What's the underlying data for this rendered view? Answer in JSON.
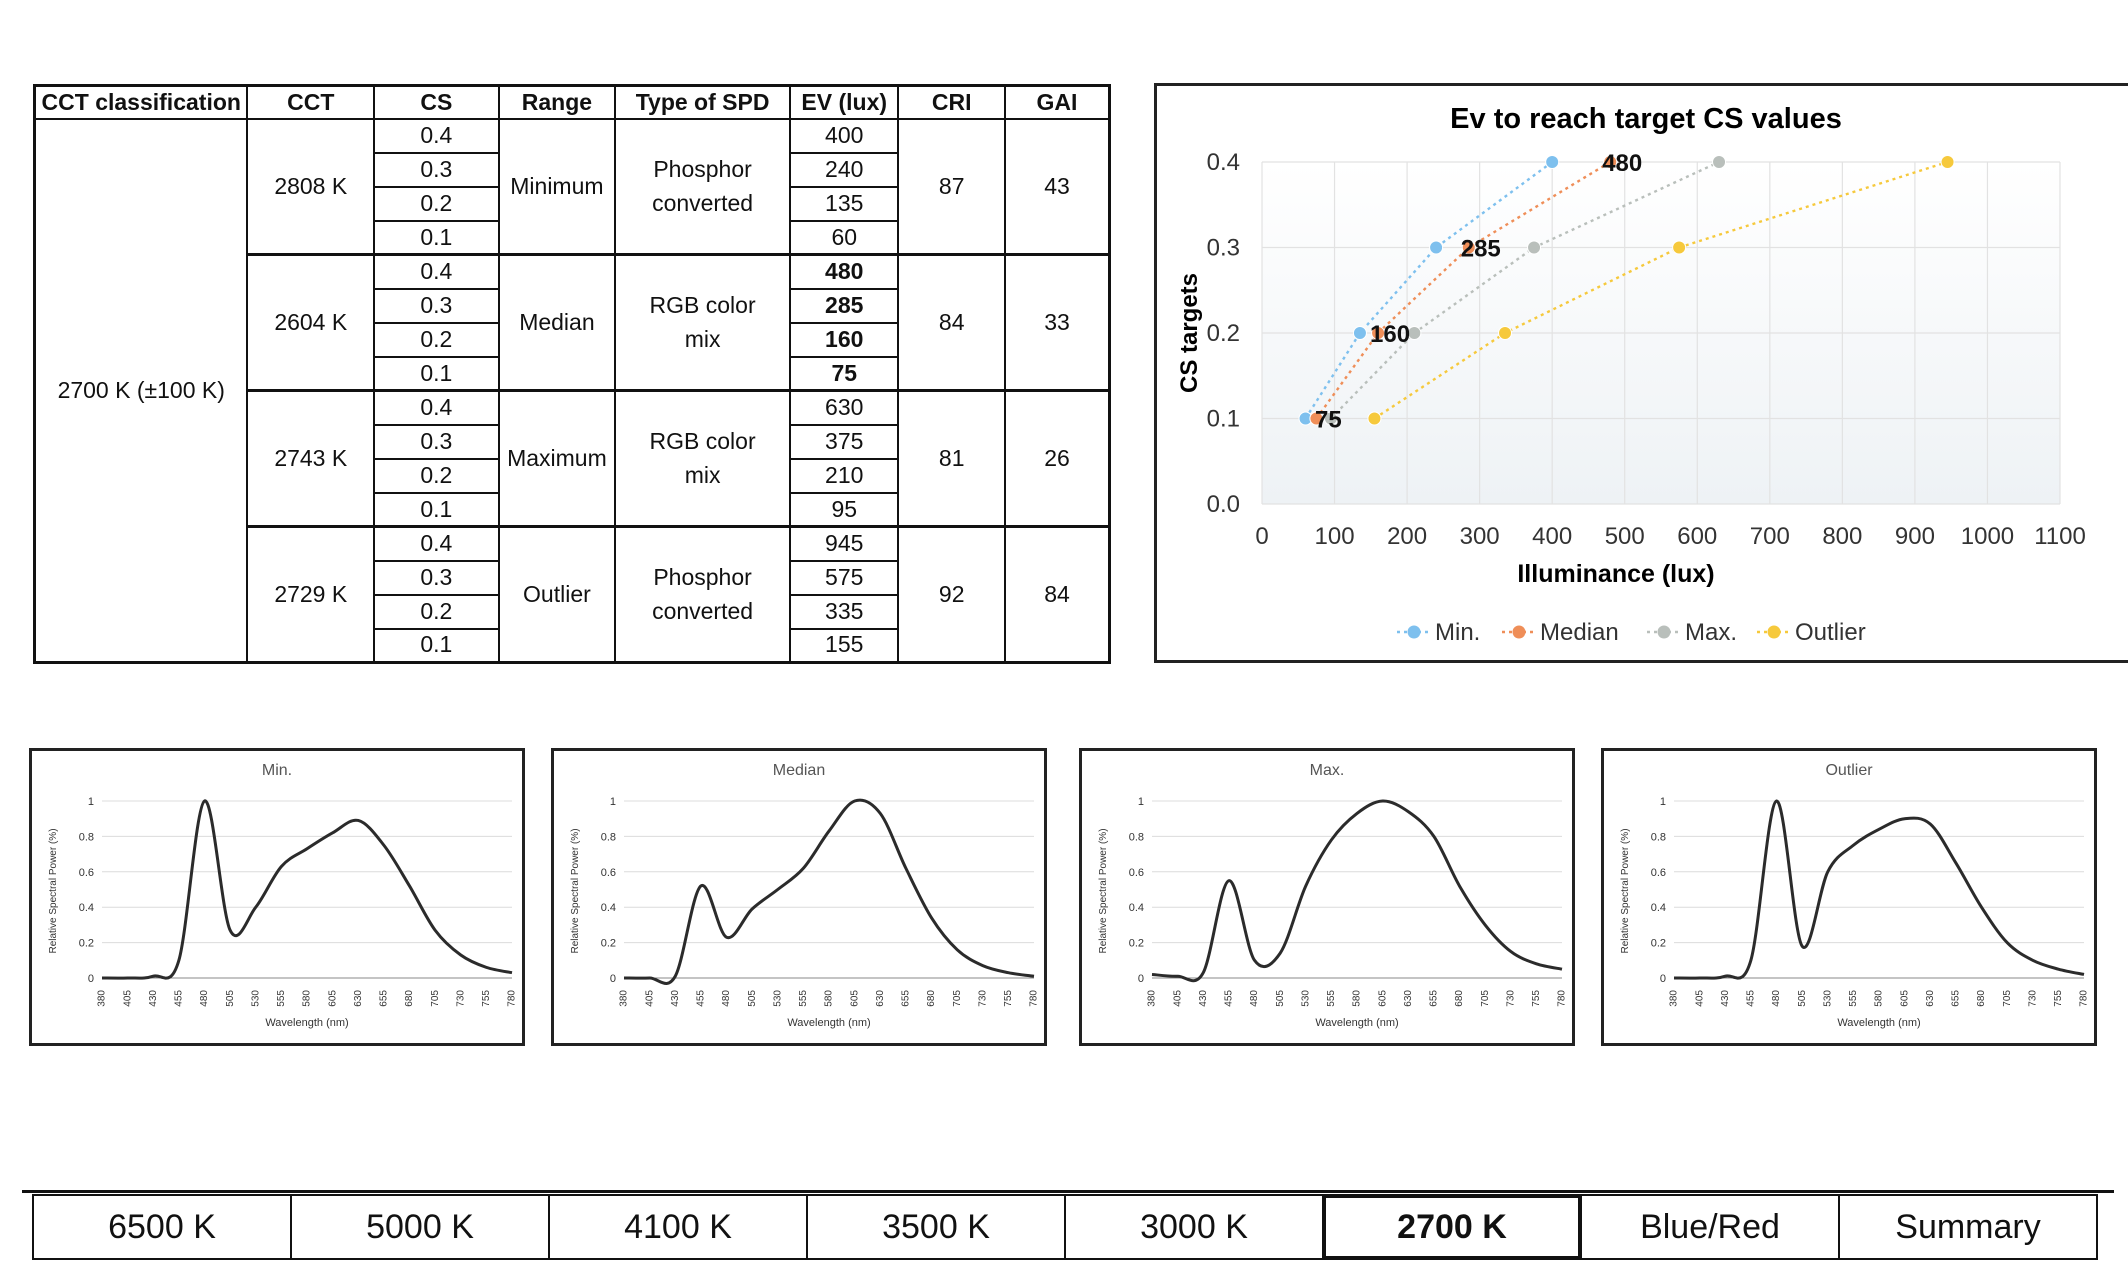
{
  "table": {
    "headers": [
      "CCT classification",
      "CCT",
      "CS",
      "Range",
      "Type of SPD",
      "EV (lux)",
      "CRI",
      "GAI"
    ],
    "classification": "2700 K (±100 K)",
    "groups": [
      {
        "cct": "2808 K",
        "range": "Minimum",
        "spd": "Phosphor converted",
        "cri": "87",
        "gai": "43",
        "rows": [
          {
            "cs": "0.4",
            "ev": "400"
          },
          {
            "cs": "0.3",
            "ev": "240"
          },
          {
            "cs": "0.2",
            "ev": "135"
          },
          {
            "cs": "0.1",
            "ev": "60"
          }
        ],
        "bold": false
      },
      {
        "cct": "2604 K",
        "range": "Median",
        "spd": "RGB color mix",
        "cri": "84",
        "gai": "33",
        "rows": [
          {
            "cs": "0.4",
            "ev": "480"
          },
          {
            "cs": "0.3",
            "ev": "285"
          },
          {
            "cs": "0.2",
            "ev": "160"
          },
          {
            "cs": "0.1",
            "ev": "75"
          }
        ],
        "bold": true
      },
      {
        "cct": "2743 K",
        "range": "Maximum",
        "spd": "RGB color mix",
        "cri": "81",
        "gai": "26",
        "rows": [
          {
            "cs": "0.4",
            "ev": "630"
          },
          {
            "cs": "0.3",
            "ev": "375"
          },
          {
            "cs": "0.2",
            "ev": "210"
          },
          {
            "cs": "0.1",
            "ev": "95"
          }
        ],
        "bold": false
      },
      {
        "cct": "2729 K",
        "range": "Outlier",
        "spd": "Phosphor converted",
        "cri": "92",
        "gai": "84",
        "rows": [
          {
            "cs": "0.4",
            "ev": "945"
          },
          {
            "cs": "0.3",
            "ev": "575"
          },
          {
            "cs": "0.2",
            "ev": "335"
          },
          {
            "cs": "0.1",
            "ev": "155"
          }
        ],
        "bold": false
      }
    ]
  },
  "colors": {
    "min": "#7ec0ee",
    "median": "#ef8e58",
    "max": "#b9bfbb",
    "outlier": "#f6c93c",
    "line": "#2b2b2b"
  },
  "chart_data": [
    {
      "type": "scatter",
      "title": "Ev to reach target CS values",
      "xlabel": "Illuminance (lux)",
      "ylabel": "CS targets",
      "xlim": [
        0,
        1100
      ],
      "ylim": [
        0,
        0.4
      ],
      "xticks": [
        "0",
        "100",
        "200",
        "300",
        "400",
        "500",
        "600",
        "700",
        "800",
        "900",
        "1000",
        "1100"
      ],
      "yticks": [
        "0.0",
        "0.1",
        "0.2",
        "0.3",
        "0.4"
      ],
      "legend_position": "bottom",
      "grid": true,
      "series": [
        {
          "name": "Min.",
          "color_key": "min",
          "x": [
            60,
            135,
            240,
            400
          ],
          "y": [
            0.1,
            0.2,
            0.3,
            0.4
          ]
        },
        {
          "name": "Median",
          "color_key": "median",
          "x": [
            75,
            160,
            285,
            480
          ],
          "y": [
            0.1,
            0.2,
            0.3,
            0.4
          ]
        },
        {
          "name": "Max.",
          "color_key": "max",
          "x": [
            95,
            210,
            375,
            630
          ],
          "y": [
            0.1,
            0.2,
            0.3,
            0.4
          ]
        },
        {
          "name": "Outlier",
          "color_key": "outlier",
          "x": [
            155,
            335,
            575,
            945
          ],
          "y": [
            0.1,
            0.2,
            0.3,
            0.4
          ]
        }
      ],
      "annotations": [
        {
          "text": "75",
          "x": 75,
          "y": 0.1
        },
        {
          "text": "160",
          "x": 160,
          "y": 0.2
        },
        {
          "text": "285",
          "x": 285,
          "y": 0.3
        },
        {
          "text": "480",
          "x": 480,
          "y": 0.4
        }
      ]
    },
    {
      "type": "line",
      "title": "Min.",
      "xlabel": "Wavelength (nm)",
      "ylabel": "Relative Spectral Power (%)",
      "x": [
        380,
        405,
        430,
        455,
        480,
        505,
        530,
        555,
        580,
        605,
        630,
        655,
        680,
        705,
        730,
        755,
        780
      ],
      "xlim": [
        380,
        780
      ],
      "ylim": [
        0,
        1
      ],
      "yticks": [
        "0",
        "0.2",
        "0.4",
        "0.6",
        "0.8",
        "1"
      ],
      "values": [
        0,
        0,
        0.01,
        0.1,
        1.0,
        0.27,
        0.4,
        0.63,
        0.73,
        0.82,
        0.89,
        0.75,
        0.52,
        0.27,
        0.13,
        0.06,
        0.03
      ]
    },
    {
      "type": "line",
      "title": "Median",
      "xlabel": "Wavelength (nm)",
      "ylabel": "Relative Spectral Power (%)",
      "x": [
        380,
        405,
        430,
        455,
        480,
        505,
        530,
        555,
        580,
        605,
        630,
        655,
        680,
        705,
        730,
        755,
        780
      ],
      "xlim": [
        380,
        780
      ],
      "ylim": [
        0,
        1
      ],
      "yticks": [
        "0",
        "0.2",
        "0.4",
        "0.6",
        "0.8",
        "1"
      ],
      "values": [
        0,
        0,
        0.01,
        0.52,
        0.23,
        0.39,
        0.5,
        0.62,
        0.83,
        1.0,
        0.93,
        0.62,
        0.34,
        0.16,
        0.07,
        0.03,
        0.01
      ]
    },
    {
      "type": "line",
      "title": "Max.",
      "xlabel": "Wavelength (nm)",
      "ylabel": "Relative Spectral Power (%)",
      "x": [
        380,
        405,
        430,
        455,
        480,
        505,
        530,
        555,
        580,
        605,
        630,
        655,
        680,
        705,
        730,
        755,
        780
      ],
      "xlim": [
        380,
        780
      ],
      "ylim": [
        0,
        1
      ],
      "yticks": [
        "0",
        "0.2",
        "0.4",
        "0.6",
        "0.8",
        "1"
      ],
      "values": [
        0.02,
        0.01,
        0.03,
        0.55,
        0.1,
        0.14,
        0.52,
        0.78,
        0.93,
        1.0,
        0.94,
        0.8,
        0.52,
        0.3,
        0.15,
        0.08,
        0.05
      ]
    },
    {
      "type": "line",
      "title": "Outlier",
      "xlabel": "Wavelength (nm)",
      "ylabel": "Relative Spectral Power (%)",
      "x": [
        380,
        405,
        430,
        455,
        480,
        505,
        530,
        555,
        580,
        605,
        630,
        655,
        680,
        705,
        730,
        755,
        780
      ],
      "xlim": [
        380,
        780
      ],
      "ylim": [
        0,
        1
      ],
      "yticks": [
        "0",
        "0.2",
        "0.4",
        "0.6",
        "0.8",
        "1"
      ],
      "values": [
        0,
        0,
        0.01,
        0.1,
        1.0,
        0.18,
        0.6,
        0.75,
        0.84,
        0.9,
        0.87,
        0.65,
        0.4,
        0.2,
        0.1,
        0.05,
        0.02
      ]
    }
  ],
  "tabs": [
    {
      "label": "6500 K",
      "active": false
    },
    {
      "label": "5000 K",
      "active": false
    },
    {
      "label": "4100 K",
      "active": false
    },
    {
      "label": "3500 K",
      "active": false
    },
    {
      "label": "3000 K",
      "active": false
    },
    {
      "label": "2700 K",
      "active": true
    },
    {
      "label": "Blue/Red",
      "active": false
    },
    {
      "label": "Summary",
      "active": false
    }
  ]
}
